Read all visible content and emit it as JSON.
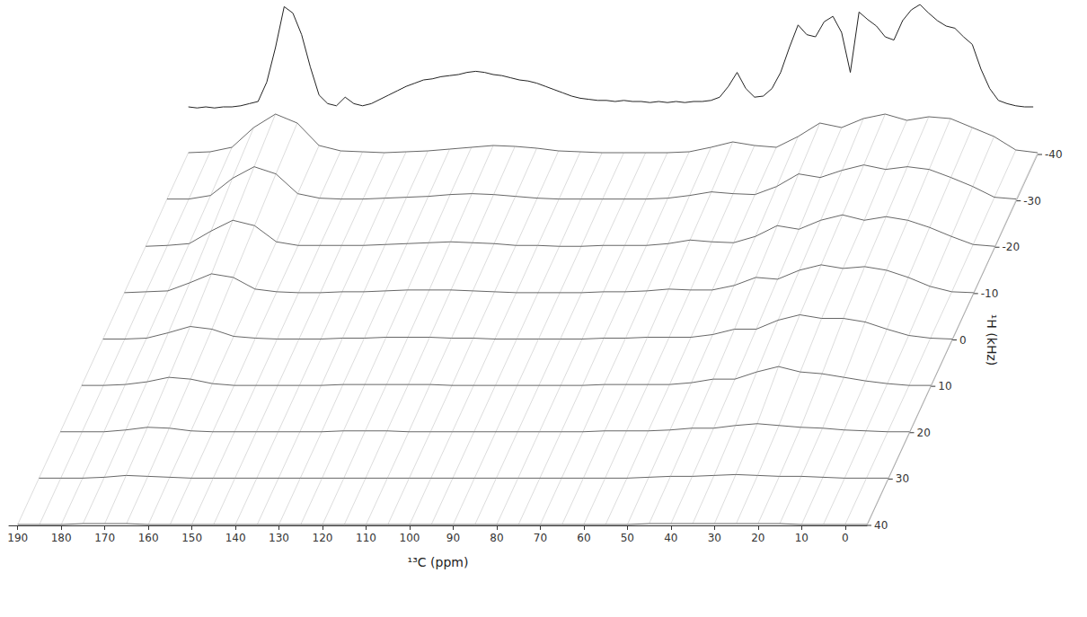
{
  "chart_data": [
    {
      "type": "line",
      "color": "#222222",
      "tick_labels": false,
      "xlim": [
        192,
        -5
      ],
      "ylim": [
        0,
        100
      ],
      "x": [
        190,
        188,
        186,
        184,
        182,
        180,
        178,
        176,
        174,
        172,
        170,
        168,
        166,
        164,
        162,
        160,
        158,
        156,
        154,
        152,
        150,
        148,
        146,
        144,
        142,
        140,
        138,
        136,
        134,
        132,
        130,
        128,
        126,
        124,
        122,
        120,
        118,
        116,
        114,
        112,
        110,
        108,
        106,
        104,
        102,
        100,
        98,
        96,
        94,
        92,
        90,
        88,
        86,
        84,
        82,
        80,
        78,
        76,
        74,
        72,
        70,
        68,
        66,
        64,
        62,
        60,
        58,
        56,
        54,
        52,
        50,
        48,
        46,
        44,
        42,
        40,
        38,
        36,
        34,
        32,
        30,
        28,
        26,
        24,
        22,
        20,
        18,
        16,
        14,
        12,
        10,
        8,
        6,
        4,
        2,
        0,
        -2,
        -4
      ],
      "values": [
        5,
        4,
        5,
        4,
        5,
        5,
        6,
        8,
        10,
        28,
        60,
        98,
        92,
        72,
        42,
        16,
        8,
        6,
        14,
        8,
        6,
        8,
        12,
        16,
        20,
        24,
        27,
        30,
        31,
        33,
        34,
        35,
        37,
        38,
        37,
        35,
        34,
        32,
        30,
        29,
        27,
        24,
        21,
        18,
        15,
        13,
        12,
        11,
        11,
        10,
        11,
        10,
        10,
        9,
        10,
        9,
        10,
        9,
        10,
        10,
        11,
        14,
        24,
        37,
        22,
        14,
        15,
        22,
        37,
        60,
        81,
        72,
        70,
        84,
        89,
        74,
        37,
        93,
        86,
        80,
        70,
        67,
        85,
        95,
        100,
        92,
        85,
        80,
        78,
        70,
        63,
        40,
        22,
        11,
        8,
        6,
        5,
        5
      ]
    },
    {
      "type": "surface",
      "color": "#555555",
      "grid": true,
      "xlabel": "¹³C (ppm)",
      "ylabel": "¹H (kHz)",
      "xlim": [
        192,
        -5
      ],
      "xticks": [
        190,
        180,
        170,
        160,
        150,
        140,
        130,
        120,
        110,
        100,
        90,
        80,
        70,
        60,
        50,
        40,
        30,
        20,
        10,
        0
      ],
      "ylim": [
        40,
        -40
      ],
      "yticks": [
        -40,
        -30,
        -20,
        -10,
        0,
        10,
        20,
        30,
        40
      ],
      "x": [
        190,
        185,
        180,
        175,
        170,
        165,
        160,
        155,
        150,
        145,
        140,
        135,
        130,
        125,
        120,
        115,
        110,
        105,
        100,
        95,
        90,
        85,
        80,
        75,
        70,
        65,
        60,
        55,
        50,
        45,
        40,
        35,
        30,
        25,
        20,
        15,
        10,
        5,
        0,
        -5
      ],
      "y": [
        -40,
        -30,
        -20,
        -10,
        0,
        10,
        20,
        30,
        40
      ],
      "z": [
        [
          2,
          3,
          8,
          30,
          45,
          35,
          10,
          4,
          3,
          2,
          3,
          4,
          6,
          8,
          10,
          9,
          7,
          4,
          3,
          2,
          2,
          2,
          2,
          3,
          8,
          14,
          10,
          8,
          20,
          35,
          30,
          40,
          45,
          38,
          42,
          40,
          30,
          20,
          5,
          2
        ],
        [
          2,
          2,
          6,
          25,
          38,
          30,
          8,
          3,
          2,
          2,
          3,
          4,
          5,
          7,
          8,
          7,
          5,
          3,
          2,
          2,
          2,
          2,
          2,
          3,
          6,
          10,
          8,
          7,
          16,
          30,
          26,
          34,
          40,
          35,
          38,
          35,
          26,
          16,
          4,
          2
        ],
        [
          1,
          2,
          4,
          18,
          30,
          24,
          6,
          2,
          2,
          2,
          2,
          3,
          4,
          5,
          6,
          5,
          4,
          2,
          2,
          1,
          1,
          2,
          2,
          2,
          4,
          8,
          6,
          5,
          12,
          24,
          20,
          30,
          36,
          30,
          34,
          30,
          22,
          12,
          3,
          1
        ],
        [
          1,
          2,
          3,
          12,
          22,
          18,
          5,
          2,
          1,
          1,
          2,
          2,
          3,
          4,
          4,
          4,
          3,
          2,
          1,
          1,
          1,
          1,
          2,
          2,
          3,
          5,
          4,
          4,
          9,
          18,
          16,
          26,
          32,
          28,
          30,
          26,
          18,
          8,
          2,
          1
        ],
        [
          1,
          1,
          2,
          8,
          15,
          12,
          4,
          2,
          1,
          1,
          1,
          2,
          2,
          3,
          3,
          3,
          2,
          2,
          1,
          1,
          1,
          1,
          1,
          2,
          2,
          3,
          3,
          3,
          6,
          12,
          12,
          22,
          28,
          24,
          24,
          20,
          12,
          5,
          2,
          1
        ],
        [
          1,
          1,
          2,
          5,
          10,
          8,
          3,
          1,
          1,
          1,
          1,
          1,
          2,
          2,
          2,
          2,
          2,
          1,
          1,
          1,
          1,
          1,
          1,
          1,
          2,
          2,
          2,
          2,
          4,
          8,
          8,
          16,
          22,
          16,
          14,
          10,
          6,
          3,
          1,
          1
        ],
        [
          1,
          1,
          1,
          3,
          6,
          5,
          2,
          1,
          1,
          1,
          1,
          1,
          1,
          2,
          2,
          2,
          1,
          1,
          1,
          1,
          1,
          1,
          1,
          1,
          1,
          2,
          2,
          2,
          3,
          5,
          5,
          8,
          10,
          8,
          6,
          5,
          3,
          2,
          1,
          1
        ],
        [
          1,
          1,
          1,
          2,
          4,
          3,
          2,
          1,
          1,
          1,
          1,
          1,
          1,
          1,
          1,
          1,
          1,
          1,
          1,
          1,
          1,
          1,
          1,
          1,
          1,
          1,
          1,
          1,
          2,
          3,
          3,
          4,
          5,
          4,
          3,
          3,
          2,
          1,
          1,
          1
        ],
        [
          1,
          1,
          1,
          2,
          2,
          2,
          1,
          1,
          1,
          1,
          1,
          1,
          1,
          1,
          1,
          1,
          1,
          1,
          1,
          1,
          1,
          1,
          1,
          1,
          1,
          1,
          1,
          1,
          1,
          2,
          2,
          2,
          2,
          2,
          2,
          2,
          1,
          1,
          1,
          1
        ]
      ]
    }
  ]
}
